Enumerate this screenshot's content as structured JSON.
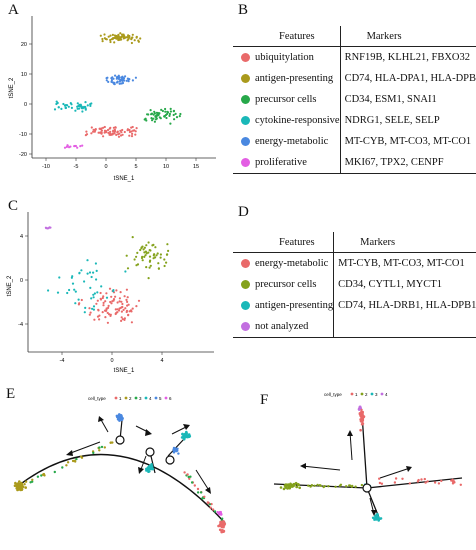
{
  "panels": [
    "A",
    "B",
    "C",
    "D",
    "E",
    "F"
  ],
  "panel_a": {
    "xlabel": "tSNE_1",
    "ylabel": "tSNE_2",
    "xticks": [
      "-10",
      "-5",
      "0",
      "5",
      "10",
      "15"
    ],
    "yticks": [
      "20",
      "10",
      "0",
      "-10",
      "-20"
    ]
  },
  "table_b": {
    "header": [
      "Features",
      "Markers"
    ],
    "rows": [
      {
        "feature": "ubiquitylation",
        "markers": "RNF19B, KLHL21, FBXO32",
        "color": "#e96a6a"
      },
      {
        "feature": "antigen-presenting",
        "markers": "CD74, HLA-DPA1, HLA-DPB1",
        "color": "#aa9a1c"
      },
      {
        "feature": "precursor cells",
        "markers": "CD34, ESM1, SNAI1",
        "color": "#27a84a"
      },
      {
        "feature": "cytokine-responsive",
        "markers": "NDRG1, SELE, SELP",
        "color": "#1ab8b8"
      },
      {
        "feature": "energy-metabolic",
        "markers": "MT-CYB, MT-CO3, MT-CO1",
        "color": "#4a88e0"
      },
      {
        "feature": "proliferative",
        "markers": "MKI67, TPX2, CENPF",
        "color": "#e35ee3"
      }
    ]
  },
  "panel_c": {
    "xlabel": "tSNE_1",
    "ylabel": "tSNE_2",
    "xticks": [
      "-4",
      "0",
      "4"
    ],
    "yticks": [
      "4",
      "0",
      "-4"
    ]
  },
  "table_d": {
    "header": [
      "Features",
      "Markers"
    ],
    "rows": [
      {
        "feature": "energy-metabolic",
        "markers": "MT-CYB, MT-CO3, MT-CO1",
        "color": "#e96a6a"
      },
      {
        "feature": "precursor cells",
        "markers": "CD34, CYTL1, MYCT1",
        "color": "#84a21c"
      },
      {
        "feature": "antigen-presenting",
        "markers": "CD74, HLA-DRB1, HLA-DPB1",
        "color": "#1ab8b8"
      },
      {
        "feature": "not analyzed",
        "markers": "",
        "color": "#c26fe0"
      }
    ]
  },
  "panel_e": {
    "legend_title": "cell_type",
    "legend_items": [
      "1",
      "2",
      "3",
      "4",
      "5",
      "6"
    ],
    "colors": [
      "#e96a6a",
      "#aa9a1c",
      "#27a84a",
      "#1ab8b8",
      "#4a88e0",
      "#e35ee3"
    ]
  },
  "panel_f": {
    "legend_title": "cell_type",
    "legend_items": [
      "1",
      "2",
      "3",
      "4"
    ],
    "colors": [
      "#e96a6a",
      "#84a21c",
      "#1ab8b8",
      "#c26fe0"
    ]
  }
}
